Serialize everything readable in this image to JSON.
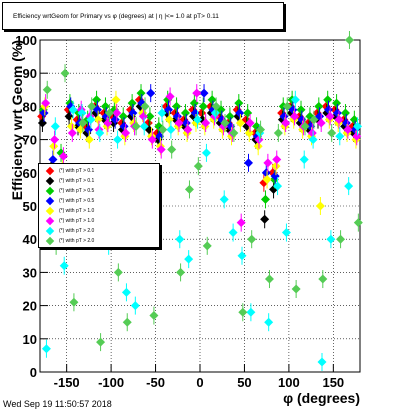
{
  "title": "Efficiency wrtGeom for Primary vs φ (degrees) at | η |<= 1.0 at pT> 0.11",
  "timestamp": "Wed Sep 19 11:50:57 2018",
  "chart_data": {
    "type": "scatter",
    "xlabel": "φ (degrees)",
    "ylabel": "Efficiency wrt Geom (%)",
    "xlim": [
      -180,
      180
    ],
    "ylim": [
      0,
      100
    ],
    "xticks": [
      "-150",
      "-100",
      "-50",
      "0",
      "50",
      "100",
      "150"
    ],
    "yticks": [
      "0",
      "10",
      "20",
      "30",
      "40",
      "50",
      "60",
      "70",
      "80",
      "90",
      "100"
    ],
    "grid": true,
    "legend_position": "left-middle",
    "series": [
      {
        "name": "(*) with pT > 0.1",
        "color": "#ff0000"
      },
      {
        "name": "(*) with pT > 0.1",
        "color": "#000000"
      },
      {
        "name": "(*) with pT > 0.5",
        "color": "#00cc00"
      },
      {
        "name": "(*) with pT > 0.5",
        "color": "#0000ff"
      },
      {
        "name": "(*) with pT > 1.0",
        "color": "#ffff00"
      },
      {
        "name": "(*) with pT > 1.0",
        "color": "#ff00ff"
      },
      {
        "name": "(*) with pT > 2.0",
        "color": "#00ffff"
      },
      {
        "name": "(*) with pT > 2.0",
        "color": "#55cc55"
      }
    ],
    "series_points": [
      {
        "x": [
          -175,
          -165,
          -155,
          -145,
          -135,
          -125,
          -115,
          -105,
          -95,
          -85,
          -75,
          -65,
          -55,
          -45,
          -35,
          -25,
          -15,
          -5,
          5,
          15,
          25,
          35,
          45,
          55,
          65,
          75,
          85,
          95,
          105,
          115,
          125,
          135,
          145,
          155,
          165,
          175
        ],
        "y": [
          77,
          60,
          55,
          79,
          76,
          74,
          80,
          78,
          77,
          75,
          79,
          82,
          75,
          72,
          80,
          78,
          76,
          79,
          78,
          80,
          77,
          75,
          79,
          76,
          72,
          57,
          60,
          78,
          80,
          77,
          75,
          78,
          80,
          79,
          76,
          74
        ]
      },
      {
        "x": [
          -175,
          -165,
          -155,
          -145,
          -135,
          -125,
          -115,
          -105,
          -95,
          -85,
          -75,
          -65,
          -55,
          -45,
          -35,
          -25,
          -15,
          -5,
          5,
          15,
          25,
          35,
          45,
          55,
          65,
          75,
          85,
          95,
          105,
          115,
          125,
          135,
          145,
          155,
          165,
          175
        ],
        "y": [
          75,
          62,
          58,
          77,
          74,
          72,
          78,
          76,
          75,
          73,
          77,
          80,
          73,
          70,
          78,
          76,
          74,
          77,
          76,
          78,
          75,
          73,
          77,
          74,
          70,
          46,
          55,
          76,
          78,
          75,
          73,
          76,
          78,
          77,
          74,
          72
        ]
      },
      {
        "x": [
          -175,
          -165,
          -155,
          -145,
          -135,
          -125,
          -115,
          -105,
          -95,
          -85,
          -75,
          -65,
          -55,
          -45,
          -35,
          -25,
          -15,
          -5,
          5,
          15,
          25,
          35,
          45,
          55,
          65,
          75,
          85,
          95,
          105,
          115,
          125,
          135,
          145,
          155,
          165,
          175
        ],
        "y": [
          79,
          59,
          66,
          81,
          78,
          76,
          82,
          80,
          79,
          77,
          81,
          84,
          77,
          74,
          82,
          80,
          78,
          81,
          80,
          82,
          79,
          77,
          81,
          78,
          74,
          52,
          58,
          80,
          82,
          79,
          77,
          80,
          82,
          81,
          78,
          76
        ]
      },
      {
        "x": [
          -175,
          -165,
          -155,
          -145,
          -135,
          -125,
          -115,
          -105,
          -95,
          -85,
          -75,
          -65,
          -55,
          -45,
          -35,
          -25,
          -15,
          -5,
          5,
          15,
          25,
          35,
          45,
          55,
          65,
          75,
          85,
          95,
          105,
          115,
          125,
          135,
          145,
          155,
          165,
          175
        ],
        "y": [
          78,
          64,
          60,
          80,
          75,
          73,
          79,
          77,
          76,
          74,
          78,
          81,
          84,
          71,
          79,
          77,
          75,
          78,
          84,
          79,
          76,
          74,
          78,
          63,
          71,
          60,
          59,
          77,
          79,
          76,
          74,
          77,
          79,
          78,
          75,
          73
        ]
      },
      {
        "x": [
          -175,
          -165,
          -155,
          -145,
          -135,
          -125,
          -115,
          -105,
          -95,
          -85,
          -75,
          -65,
          -55,
          -45,
          -35,
          -25,
          -15,
          -5,
          5,
          15,
          25,
          35,
          45,
          55,
          65,
          75,
          85,
          95,
          105,
          115,
          125,
          135,
          145,
          155,
          165,
          175
        ],
        "y": [
          80,
          68,
          62,
          74,
          73,
          70,
          76,
          74,
          82,
          71,
          75,
          78,
          71,
          68,
          76,
          74,
          72,
          75,
          74,
          76,
          73,
          71,
          75,
          72,
          68,
          58,
          62,
          74,
          76,
          73,
          71,
          50,
          76,
          75,
          72,
          70
        ]
      },
      {
        "x": [
          -175,
          -165,
          -155,
          -145,
          -135,
          -125,
          -115,
          -105,
          -95,
          -85,
          -75,
          -65,
          -55,
          -45,
          -35,
          -25,
          -15,
          -5,
          5,
          15,
          25,
          35,
          45,
          55,
          65,
          75,
          85,
          95,
          105,
          115,
          125,
          135,
          145,
          155,
          165,
          175
        ],
        "y": [
          81,
          70,
          65,
          72,
          79,
          77,
          73,
          75,
          78,
          72,
          74,
          77,
          70,
          67,
          83,
          75,
          73,
          84,
          75,
          77,
          74,
          72,
          45,
          75,
          70,
          63,
          64,
          75,
          77,
          74,
          72,
          75,
          77,
          76,
          73,
          71
        ]
      },
      {
        "x": [
          -175,
          -165,
          -155,
          -145,
          -135,
          -125,
          -115,
          -105,
          -95,
          -85,
          -75,
          -65,
          -55,
          -45,
          -35,
          -25,
          -15,
          -5,
          5,
          15,
          25,
          35,
          45,
          55,
          65,
          75,
          85,
          95,
          105,
          115,
          125,
          135,
          145,
          155,
          165,
          175
        ],
        "y": [
          7,
          74,
          32,
          79,
          78,
          76,
          72,
          38,
          70,
          24,
          20,
          74,
          48,
          78,
          73,
          40,
          34,
          76,
          66,
          78,
          52,
          42,
          35,
          18,
          72,
          15,
          56,
          42,
          82,
          64,
          70,
          3,
          40,
          71,
          56,
          74
        ]
      },
      {
        "x": [
          -175,
          -165,
          -155,
          -145,
          -135,
          -125,
          -115,
          -105,
          -95,
          -85,
          -75,
          -65,
          -55,
          -45,
          -35,
          -25,
          -15,
          -5,
          5,
          15,
          25,
          35,
          45,
          55,
          65,
          75,
          85,
          95,
          105,
          115,
          125,
          135,
          145,
          155,
          165,
          175
        ],
        "y": [
          85,
          38,
          90,
          21,
          75,
          80,
          9,
          78,
          30,
          15,
          74,
          80,
          17,
          73,
          67,
          30,
          55,
          62,
          38,
          80,
          75,
          72,
          18,
          40,
          73,
          28,
          72,
          80,
          25,
          74,
          76,
          28,
          72,
          40,
          100,
          45
        ]
      }
    ]
  }
}
